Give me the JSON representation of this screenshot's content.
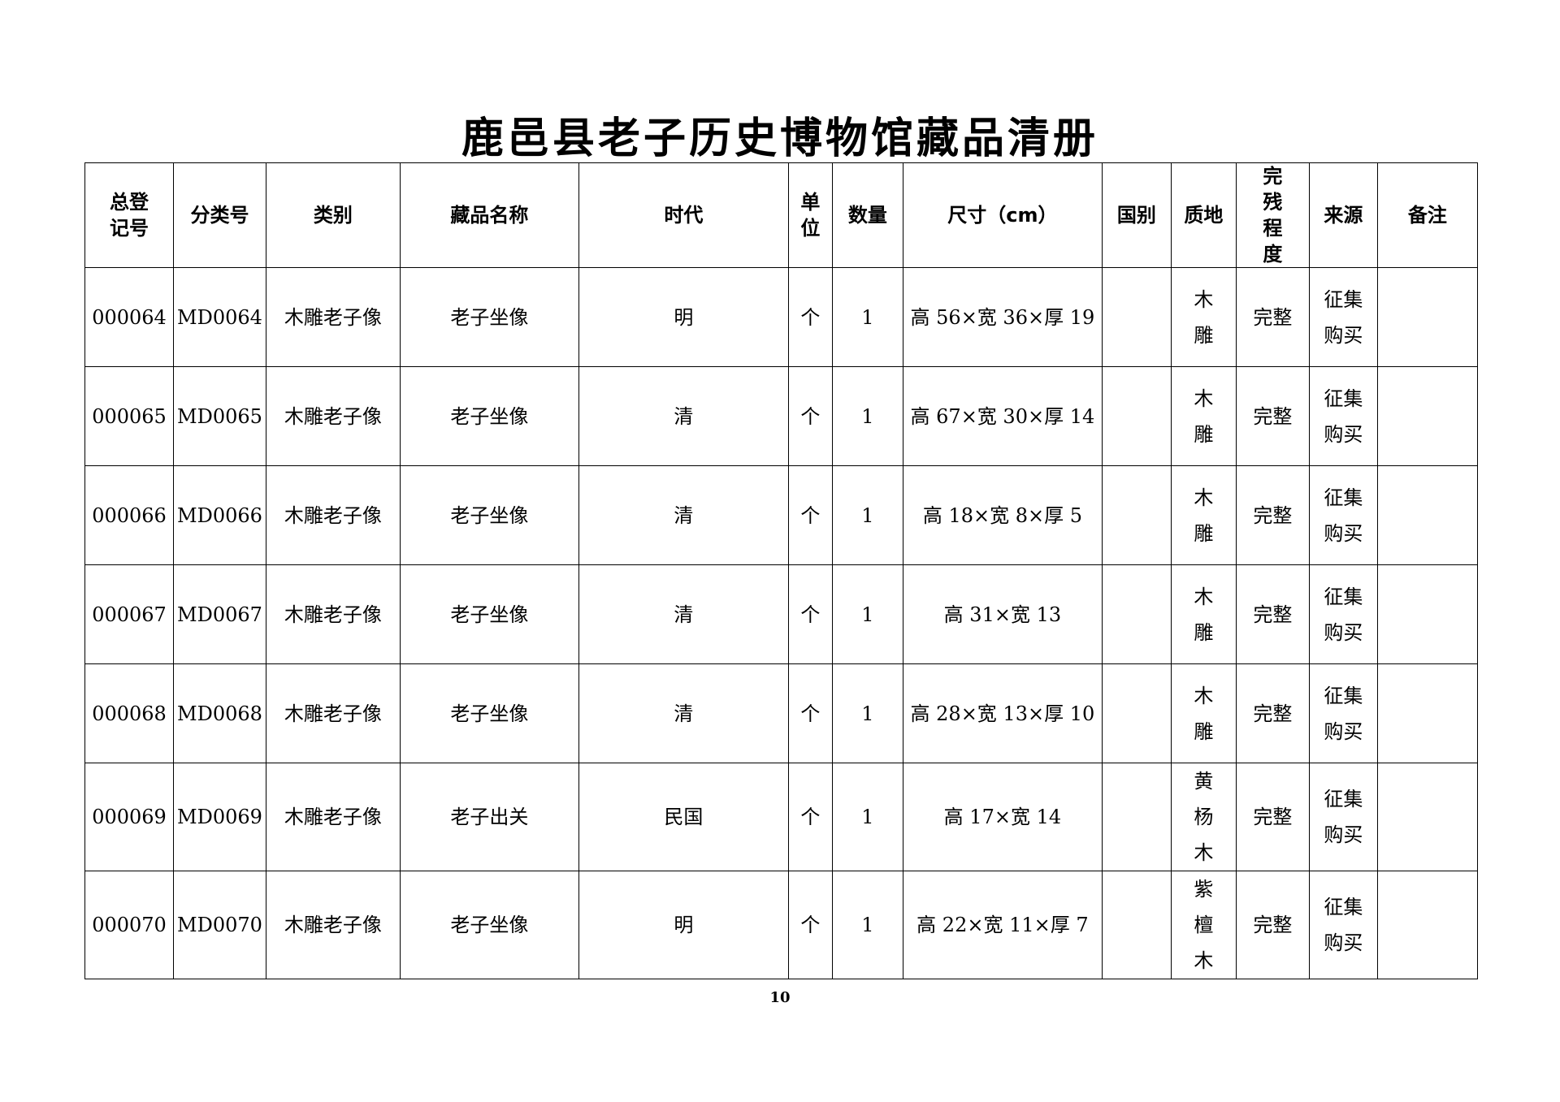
{
  "title": "鹿邑县老子历史博物馆藏品清册",
  "columns": [
    "总登记号",
    "分类号",
    "类别",
    "藏品名称",
    "时代",
    "单位",
    "数量",
    "尺寸（cm）",
    "国别",
    "质地",
    "完残程度",
    "来源",
    "备注"
  ],
  "rows": [
    [
      "000064",
      "MD0064",
      "木雕老子像",
      "老子坐像",
      "明",
      "个",
      "1",
      "高 56×宽 36×厚 19",
      "",
      "木雕",
      "完整",
      "征集购买",
      ""
    ],
    [
      "000065",
      "MD0065",
      "木雕老子像",
      "老子坐像",
      "清",
      "个",
      "1",
      "高 67×宽 30×厚 14",
      "",
      "木雕",
      "完整",
      "征集购买",
      ""
    ],
    [
      "000066",
      "MD0066",
      "木雕老子像",
      "老子坐像",
      "清",
      "个",
      "1",
      "高 18×宽 8×厚 5",
      "",
      "木雕",
      "完整",
      "征集购买",
      ""
    ],
    [
      "000067",
      "MD0067",
      "木雕老子像",
      "老子坐像",
      "清",
      "个",
      "1",
      "高 31×宽 13",
      "",
      "木雕",
      "完整",
      "征集购买",
      ""
    ],
    [
      "000068",
      "MD0068",
      "木雕老子像",
      "老子坐像",
      "清",
      "个",
      "1",
      "高 28×宽 13×厚 10",
      "",
      "木雕",
      "完整",
      "征集购买",
      ""
    ],
    [
      "000069",
      "MD0069",
      "木雕老子像",
      "老子出关",
      "民国",
      "个",
      "1",
      "高 17×宽 14",
      "",
      "黄杨木",
      "完整",
      "征集购买",
      ""
    ],
    [
      "000070",
      "MD0070",
      "木雕老子像",
      "老子坐像",
      "明",
      "个",
      "1",
      "高 22×宽 11×厚 7",
      "",
      "紫檀木",
      "完整",
      "征集购买",
      ""
    ]
  ],
  "page_number": "10"
}
